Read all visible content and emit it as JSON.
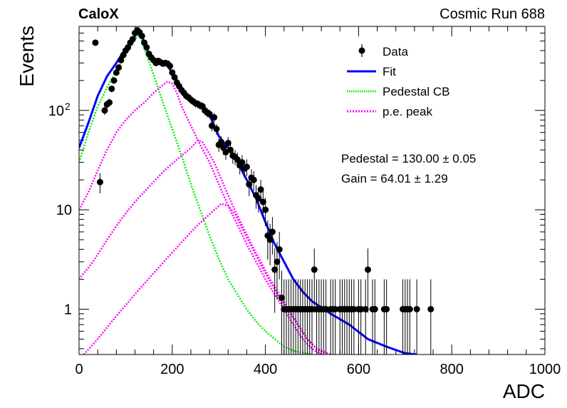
{
  "header": {
    "experiment": "CaloX",
    "run": "Cosmic Run 688"
  },
  "fit_results": {
    "pedestal": "Pedestal = 130.00 ± 0.05",
    "gain": "Gain = 64.01 ± 1.29"
  },
  "chart_data": {
    "type": "scatter",
    "xlabel": "ADC",
    "ylabel": "Events",
    "xlim": [
      0,
      1000
    ],
    "ylim": [
      0.35,
      700
    ],
    "y_scale": "log",
    "x_ticks": [
      0,
      200,
      400,
      600,
      800,
      1000
    ],
    "y_ticks": [
      {
        "value": 1,
        "label": "1"
      },
      {
        "value": 10,
        "label": "10"
      },
      {
        "value": 100,
        "label": "10",
        "exp": "2"
      }
    ],
    "grid": false,
    "legend_position": "top-right",
    "legend": [
      {
        "label": "Data",
        "style": "marker",
        "color": "#000000"
      },
      {
        "label": "Fit",
        "style": "solid",
        "color": "#0000ff"
      },
      {
        "label": "Pedestal CB",
        "style": "dotted",
        "color": "#00ee00"
      },
      {
        "label": "p.e. peak",
        "style": "dotted",
        "color": "#ff00ff"
      }
    ],
    "series": [
      {
        "name": "Data",
        "kind": "points",
        "color": "#000000",
        "points": [
          [
            35,
            480
          ],
          [
            45,
            19
          ],
          [
            55,
            100
          ],
          [
            60,
            115
          ],
          [
            65,
            120
          ],
          [
            70,
            165
          ],
          [
            75,
            200
          ],
          [
            80,
            240
          ],
          [
            85,
            270
          ],
          [
            90,
            320
          ],
          [
            95,
            360
          ],
          [
            100,
            400
          ],
          [
            105,
            430
          ],
          [
            110,
            480
          ],
          [
            115,
            520
          ],
          [
            120,
            600
          ],
          [
            125,
            640
          ],
          [
            130,
            610
          ],
          [
            135,
            560
          ],
          [
            140,
            480
          ],
          [
            145,
            430
          ],
          [
            150,
            370
          ],
          [
            155,
            340
          ],
          [
            160,
            320
          ],
          [
            165,
            300
          ],
          [
            170,
            315
          ],
          [
            175,
            305
          ],
          [
            180,
            295
          ],
          [
            185,
            300
          ],
          [
            190,
            295
          ],
          [
            195,
            280
          ],
          [
            200,
            240
          ],
          [
            205,
            215
          ],
          [
            210,
            190
          ],
          [
            215,
            175
          ],
          [
            220,
            160
          ],
          [
            225,
            150
          ],
          [
            230,
            140
          ],
          [
            235,
            135
          ],
          [
            240,
            128
          ],
          [
            245,
            123
          ],
          [
            250,
            118
          ],
          [
            255,
            116
          ],
          [
            260,
            112
          ],
          [
            265,
            110
          ],
          [
            270,
            100
          ],
          [
            275,
            95
          ],
          [
            280,
            92
          ],
          [
            285,
            70
          ],
          [
            290,
            85
          ],
          [
            295,
            65
          ],
          [
            300,
            45
          ],
          [
            305,
            48
          ],
          [
            310,
            42
          ],
          [
            315,
            38
          ],
          [
            320,
            47
          ],
          [
            325,
            40
          ],
          [
            330,
            35
          ],
          [
            335,
            34
          ],
          [
            340,
            32
          ],
          [
            345,
            28
          ],
          [
            350,
            30
          ],
          [
            355,
            26
          ],
          [
            360,
            27
          ],
          [
            365,
            18
          ],
          [
            370,
            21
          ],
          [
            375,
            20
          ],
          [
            380,
            14
          ],
          [
            385,
            13
          ],
          [
            390,
            16
          ],
          [
            395,
            12
          ],
          [
            400,
            10
          ],
          [
            405,
            5.5
          ],
          [
            410,
            5
          ],
          [
            415,
            6
          ],
          [
            420,
            2.5
          ],
          [
            425,
            3
          ],
          [
            430,
            4
          ],
          [
            435,
            1.3
          ],
          [
            440,
            1
          ],
          [
            445,
            1
          ],
          [
            450,
            1
          ],
          [
            455,
            1
          ],
          [
            460,
            1
          ],
          [
            465,
            1
          ],
          [
            470,
            1
          ],
          [
            475,
            1
          ],
          [
            480,
            1
          ],
          [
            485,
            1
          ],
          [
            490,
            1
          ],
          [
            495,
            1
          ],
          [
            500,
            1
          ],
          [
            505,
            2.5
          ],
          [
            510,
            1
          ],
          [
            515,
            1
          ],
          [
            520,
            1
          ],
          [
            525,
            1
          ],
          [
            530,
            1
          ],
          [
            540,
            1
          ],
          [
            545,
            1
          ],
          [
            550,
            1
          ],
          [
            560,
            1
          ],
          [
            565,
            1
          ],
          [
            570,
            1
          ],
          [
            575,
            1
          ],
          [
            580,
            1
          ],
          [
            585,
            1
          ],
          [
            590,
            1
          ],
          [
            600,
            1
          ],
          [
            605,
            1
          ],
          [
            615,
            1
          ],
          [
            620,
            2.5
          ],
          [
            630,
            1
          ],
          [
            635,
            1
          ],
          [
            655,
            1
          ],
          [
            660,
            1
          ],
          [
            695,
            1
          ],
          [
            700,
            1
          ],
          [
            705,
            1
          ],
          [
            710,
            1
          ],
          [
            725,
            1
          ],
          [
            755,
            1
          ]
        ]
      },
      {
        "name": "Fit",
        "kind": "line",
        "color": "#0000ff",
        "points": [
          [
            0,
            42
          ],
          [
            20,
            75
          ],
          [
            40,
            140
          ],
          [
            60,
            220
          ],
          [
            80,
            300
          ],
          [
            100,
            420
          ],
          [
            120,
            560
          ],
          [
            130,
            640
          ],
          [
            140,
            480
          ],
          [
            150,
            370
          ],
          [
            160,
            330
          ],
          [
            170,
            320
          ],
          [
            180,
            300
          ],
          [
            190,
            280
          ],
          [
            200,
            240
          ],
          [
            220,
            170
          ],
          [
            240,
            130
          ],
          [
            260,
            110
          ],
          [
            280,
            90
          ],
          [
            300,
            55
          ],
          [
            320,
            42
          ],
          [
            340,
            30
          ],
          [
            360,
            20
          ],
          [
            380,
            13
          ],
          [
            400,
            7.5
          ],
          [
            420,
            4.5
          ],
          [
            440,
            3
          ],
          [
            460,
            2
          ],
          [
            480,
            1.5
          ],
          [
            500,
            1.2
          ],
          [
            540,
            0.9
          ],
          [
            580,
            0.7
          ],
          [
            620,
            0.5
          ],
          [
            660,
            0.42
          ],
          [
            700,
            0.36
          ],
          [
            725,
            0.35
          ]
        ]
      },
      {
        "name": "Pedestal CB",
        "kind": "dotted",
        "color": "#00ee00",
        "points": [
          [
            0,
            30
          ],
          [
            20,
            60
          ],
          [
            40,
            110
          ],
          [
            60,
            170
          ],
          [
            80,
            250
          ],
          [
            100,
            360
          ],
          [
            120,
            520
          ],
          [
            130,
            580
          ],
          [
            140,
            420
          ],
          [
            160,
            230
          ],
          [
            180,
            120
          ],
          [
            200,
            65
          ],
          [
            220,
            35
          ],
          [
            240,
            18
          ],
          [
            260,
            10
          ],
          [
            280,
            5.5
          ],
          [
            300,
            3.2
          ],
          [
            320,
            2
          ],
          [
            340,
            1.4
          ],
          [
            360,
            1
          ],
          [
            380,
            0.75
          ],
          [
            400,
            0.6
          ],
          [
            420,
            0.5
          ],
          [
            440,
            0.42
          ],
          [
            460,
            0.38
          ],
          [
            500,
            0.35
          ]
        ]
      },
      {
        "name": "p.e. peak 1",
        "kind": "dotted",
        "color": "#ff00ff",
        "points": [
          [
            0,
            10
          ],
          [
            20,
            15
          ],
          [
            40,
            25
          ],
          [
            60,
            40
          ],
          [
            80,
            60
          ],
          [
            100,
            80
          ],
          [
            120,
            100
          ],
          [
            140,
            120
          ],
          [
            160,
            150
          ],
          [
            180,
            180
          ],
          [
            190,
            195
          ],
          [
            200,
            185
          ],
          [
            210,
            150
          ],
          [
            220,
            110
          ],
          [
            240,
            70
          ],
          [
            260,
            45
          ],
          [
            280,
            30
          ],
          [
            300,
            18
          ],
          [
            320,
            11
          ],
          [
            340,
            7
          ],
          [
            360,
            4.5
          ],
          [
            380,
            3
          ],
          [
            400,
            2
          ],
          [
            420,
            1.4
          ],
          [
            440,
            1
          ],
          [
            460,
            0.7
          ],
          [
            480,
            0.5
          ],
          [
            500,
            0.4
          ],
          [
            520,
            0.35
          ]
        ]
      },
      {
        "name": "p.e. peak 2",
        "kind": "dotted",
        "color": "#ff00ff",
        "points": [
          [
            0,
            2
          ],
          [
            30,
            3
          ],
          [
            60,
            5
          ],
          [
            90,
            8
          ],
          [
            120,
            12
          ],
          [
            150,
            17
          ],
          [
            180,
            24
          ],
          [
            210,
            32
          ],
          [
            240,
            42
          ],
          [
            255,
            50
          ],
          [
            265,
            48
          ],
          [
            275,
            40
          ],
          [
            290,
            30
          ],
          [
            310,
            18
          ],
          [
            330,
            11
          ],
          [
            350,
            7
          ],
          [
            370,
            4.5
          ],
          [
            390,
            3
          ],
          [
            410,
            2
          ],
          [
            430,
            1.4
          ],
          [
            450,
            1
          ],
          [
            470,
            0.7
          ],
          [
            490,
            0.5
          ],
          [
            510,
            0.4
          ],
          [
            540,
            0.35
          ]
        ]
      },
      {
        "name": "p.e. peak 3",
        "kind": "dotted",
        "color": "#ff00ff",
        "points": [
          [
            10,
            0.35
          ],
          [
            40,
            0.5
          ],
          [
            70,
            0.75
          ],
          [
            100,
            1.1
          ],
          [
            130,
            1.6
          ],
          [
            160,
            2.3
          ],
          [
            190,
            3.3
          ],
          [
            220,
            4.7
          ],
          [
            250,
            6.7
          ],
          [
            280,
            9
          ],
          [
            305,
            11.5
          ],
          [
            320,
            11
          ],
          [
            335,
            9
          ],
          [
            350,
            6.5
          ],
          [
            370,
            4.3
          ],
          [
            390,
            2.8
          ],
          [
            410,
            1.9
          ],
          [
            430,
            1.3
          ],
          [
            450,
            0.95
          ],
          [
            470,
            0.7
          ],
          [
            490,
            0.5
          ],
          [
            510,
            0.4
          ],
          [
            530,
            0.35
          ]
        ]
      }
    ]
  }
}
